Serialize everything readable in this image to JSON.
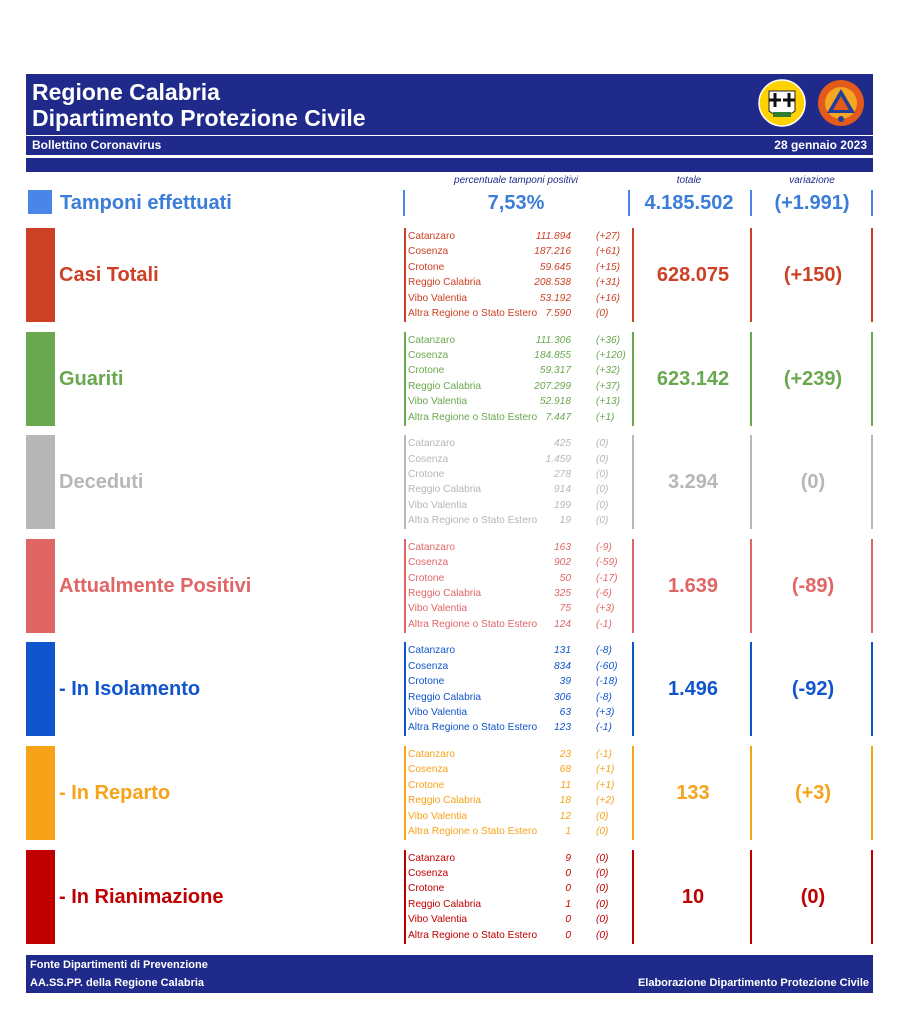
{
  "header": {
    "title_line1": "Regione Calabria",
    "title_line2": "Dipartimento Protezione Civile",
    "subtitle": "Bollettino Coronavirus",
    "date": "28 gennaio 2023",
    "logos": [
      "regione-calabria-coat-of-arms",
      "protezione-civile-emblem"
    ]
  },
  "column_headers": {
    "percentage": "percentuale tamponi positivi",
    "total": "totale",
    "variation": "variazione"
  },
  "tamponi": {
    "label": "Tamponi effettuati",
    "percentage": "7,53%",
    "total": "4.185.502",
    "variation": "(+1.991)",
    "color": "#4a86e8"
  },
  "categories": [
    {
      "key": "casi-totali",
      "label": "Casi Totali",
      "color": "#cc4125",
      "total": "628.075",
      "variation": "(+150)",
      "rows": [
        {
          "name": "Catanzaro",
          "value": "111.894",
          "change": "(+27)"
        },
        {
          "name": "Cosenza",
          "value": "187.216",
          "change": "(+61)"
        },
        {
          "name": "Crotone",
          "value": "59.645",
          "change": "(+15)"
        },
        {
          "name": "Reggio Calabria",
          "value": "208.538",
          "change": "(+31)"
        },
        {
          "name": "Vibo Valentia",
          "value": "53.192",
          "change": "(+16)"
        },
        {
          "name": "Altra Regione o Stato Estero",
          "value": "7.590",
          "change": "(0)"
        }
      ]
    },
    {
      "key": "guariti",
      "label": "Guariti",
      "color": "#6aa84f",
      "total": "623.142",
      "variation": "(+239)",
      "rows": [
        {
          "name": "Catanzaro",
          "value": "111.306",
          "change": "(+36)"
        },
        {
          "name": "Cosenza",
          "value": "184.855",
          "change": "(+120)"
        },
        {
          "name": "Crotone",
          "value": "59.317",
          "change": "(+32)"
        },
        {
          "name": "Reggio Calabria",
          "value": "207.299",
          "change": "(+37)"
        },
        {
          "name": "Vibo Valentia",
          "value": "52.918",
          "change": "(+13)"
        },
        {
          "name": "Altra Regione o Stato Estero",
          "value": "7.447",
          "change": "(+1)"
        }
      ]
    },
    {
      "key": "deceduti",
      "label": "Deceduti",
      "color": "#b7b7b7",
      "total": "3.294",
      "variation": "(0)",
      "rows": [
        {
          "name": "Catanzaro",
          "value": "425",
          "change": "(0)"
        },
        {
          "name": "Cosenza",
          "value": "1.459",
          "change": "(0)"
        },
        {
          "name": "Crotone",
          "value": "278",
          "change": "(0)"
        },
        {
          "name": "Reggio Calabria",
          "value": "914",
          "change": "(0)"
        },
        {
          "name": "Vibo Valentia",
          "value": "199",
          "change": "(0)"
        },
        {
          "name": "Altra Regione o Stato Estero",
          "value": "19",
          "change": "(0)"
        }
      ]
    },
    {
      "key": "attualmente-positivi",
      "label": "Attualmente Positivi",
      "color": "#e06666",
      "total": "1.639",
      "variation": "(-89)",
      "rows": [
        {
          "name": "Catanzaro",
          "value": "163",
          "change": "(-9)"
        },
        {
          "name": "Cosenza",
          "value": "902",
          "change": "(-59)"
        },
        {
          "name": "Crotone",
          "value": "50",
          "change": "(-17)"
        },
        {
          "name": "Reggio Calabria",
          "value": "325",
          "change": "(-6)"
        },
        {
          "name": "Vibo Valentia",
          "value": "75",
          "change": "(+3)"
        },
        {
          "name": "Altra Regione o Stato Estero",
          "value": "124",
          "change": "(-1)"
        }
      ]
    },
    {
      "key": "in-isolamento",
      "label": "- In Isolamento",
      "color": "#1155cc",
      "total": "1.496",
      "variation": "(-92)",
      "rows": [
        {
          "name": "Catanzaro",
          "value": "131",
          "change": "(-8)"
        },
        {
          "name": "Cosenza",
          "value": "834",
          "change": "(-60)"
        },
        {
          "name": "Crotone",
          "value": "39",
          "change": "(-18)"
        },
        {
          "name": "Reggio Calabria",
          "value": "306",
          "change": "(-8)"
        },
        {
          "name": "Vibo Valentia",
          "value": "63",
          "change": "(+3)"
        },
        {
          "name": "Altra Regione o Stato Estero",
          "value": "123",
          "change": "(-1)"
        }
      ]
    },
    {
      "key": "in-reparto",
      "label": "- In Reparto",
      "color": "#f6a31a",
      "total": "133",
      "variation": "(+3)",
      "rows": [
        {
          "name": "Catanzaro",
          "value": "23",
          "change": "(-1)"
        },
        {
          "name": "Cosenza",
          "value": "68",
          "change": "(+1)"
        },
        {
          "name": "Crotone",
          "value": "11",
          "change": "(+1)"
        },
        {
          "name": "Reggio Calabria",
          "value": "18",
          "change": "(+2)"
        },
        {
          "name": "Vibo Valentia",
          "value": "12",
          "change": "(0)"
        },
        {
          "name": "Altra Regione o Stato Estero",
          "value": "1",
          "change": "(0)"
        }
      ]
    },
    {
      "key": "in-rianimazione",
      "label": "- In Rianimazione",
      "color": "#c00000",
      "total": "10",
      "variation": "(0)",
      "rows": [
        {
          "name": "Catanzaro",
          "value": "9",
          "change": "(0)"
        },
        {
          "name": "Cosenza",
          "value": "0",
          "change": "(0)"
        },
        {
          "name": "Crotone",
          "value": "0",
          "change": "(0)"
        },
        {
          "name": "Reggio Calabria",
          "value": "1",
          "change": "(0)"
        },
        {
          "name": "Vibo Valentia",
          "value": "0",
          "change": "(0)"
        },
        {
          "name": "Altra Regione o Stato Estero",
          "value": "0",
          "change": "(0)"
        }
      ]
    }
  ],
  "footer": {
    "line1": "Fonte Dipartimenti di Prevenzione",
    "line2": "AA.SS.PP.  della Regione Calabria",
    "right": "Elaborazione Dipartimento Protezione Civile"
  },
  "colors": {
    "navy": "#1f2a8a",
    "tamponi_text": "#3b7dd8"
  }
}
